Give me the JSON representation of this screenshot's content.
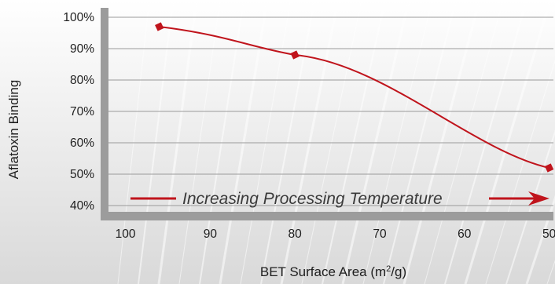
{
  "chart_data": {
    "type": "line",
    "title": "",
    "xlabel": "BET Surface Area (m²/g)",
    "ylabel": "Aflatoxin Binding",
    "x_ticks": [
      "100",
      "90",
      "80",
      "70",
      "60",
      "50"
    ],
    "y_ticks": [
      "40%",
      "50%",
      "60%",
      "70%",
      "80%",
      "90%",
      "100%"
    ],
    "xlim": [
      102,
      49.5
    ],
    "ylim": [
      38,
      103
    ],
    "x_reversed": true,
    "grid": true,
    "series": [
      {
        "x": [
          96,
          80,
          50
        ],
        "y": [
          97,
          88,
          52
        ],
        "color": "#c0141c",
        "marker": "diamond"
      }
    ],
    "annotation": {
      "text": "Increasing Processing Temperature",
      "color": "#c0141c"
    }
  }
}
